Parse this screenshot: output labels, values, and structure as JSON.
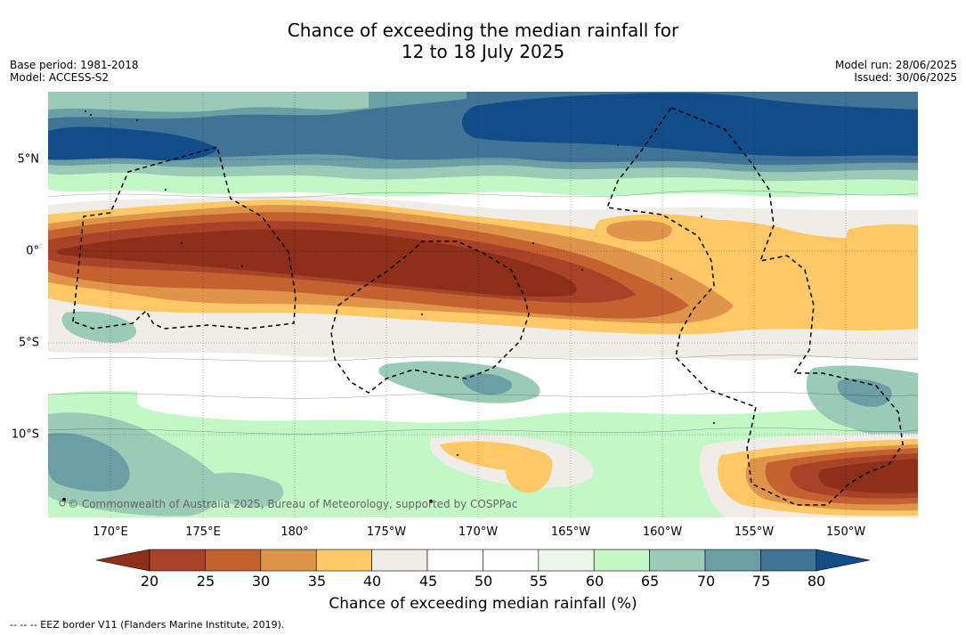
{
  "title": {
    "line1": "Chance of exceeding the median rainfall for",
    "line2": "12 to 18 July 2025"
  },
  "meta_left": {
    "base_period": "Base period: 1981-2018",
    "model": "Model: ACCESS-S2"
  },
  "meta_right": {
    "model_run": "Model run: 28/06/2025",
    "issued": "Issued: 30/06/2025"
  },
  "map": {
    "lat_labels": [
      "5°N",
      "0°",
      "5°S",
      "10°S"
    ],
    "lon_labels": [
      "170°E",
      "175°E",
      "180°",
      "175°W",
      "170°W",
      "165°W",
      "160°W",
      "155°W",
      "150°W"
    ],
    "copyright": "© Commonwealth of Australia 2025, Bureau of Meteorology, supported by COSPPac",
    "colors": {
      "under_20": "#8e2f1a",
      "20_25": "#a8432a",
      "25_30": "#c4622f",
      "30_35": "#e0944a",
      "35_40": "#fdc865",
      "40_45": "#f0ede8",
      "45_55": "#ffffff",
      "55_60": "#eaf6e8",
      "60_65": "#c3f7c6",
      "65_70": "#9acbb6",
      "70_75": "#6a9fa6",
      "75_80": "#3f7496",
      "over_80": "#134d89"
    }
  },
  "colorbar": {
    "title": "Chance of exceeding median rainfall (%)",
    "ticks": [
      "20",
      "25",
      "30",
      "35",
      "40",
      "45",
      "50",
      "55",
      "60",
      "65",
      "70",
      "75",
      "80"
    ],
    "colors": [
      "#a8432a",
      "#c4622f",
      "#e0944a",
      "#fdc865",
      "#f0ede8",
      "#ffffff",
      "#ffffff",
      "#eaf6e8",
      "#c3f7c6",
      "#9acbb6",
      "#6a9fa6",
      "#3f7496"
    ],
    "low_color": "#8e2f1a",
    "high_color": "#134d89"
  },
  "legend_note": "--  --  -- EEZ border V11 (Flanders Marine Institute, 2019)."
}
